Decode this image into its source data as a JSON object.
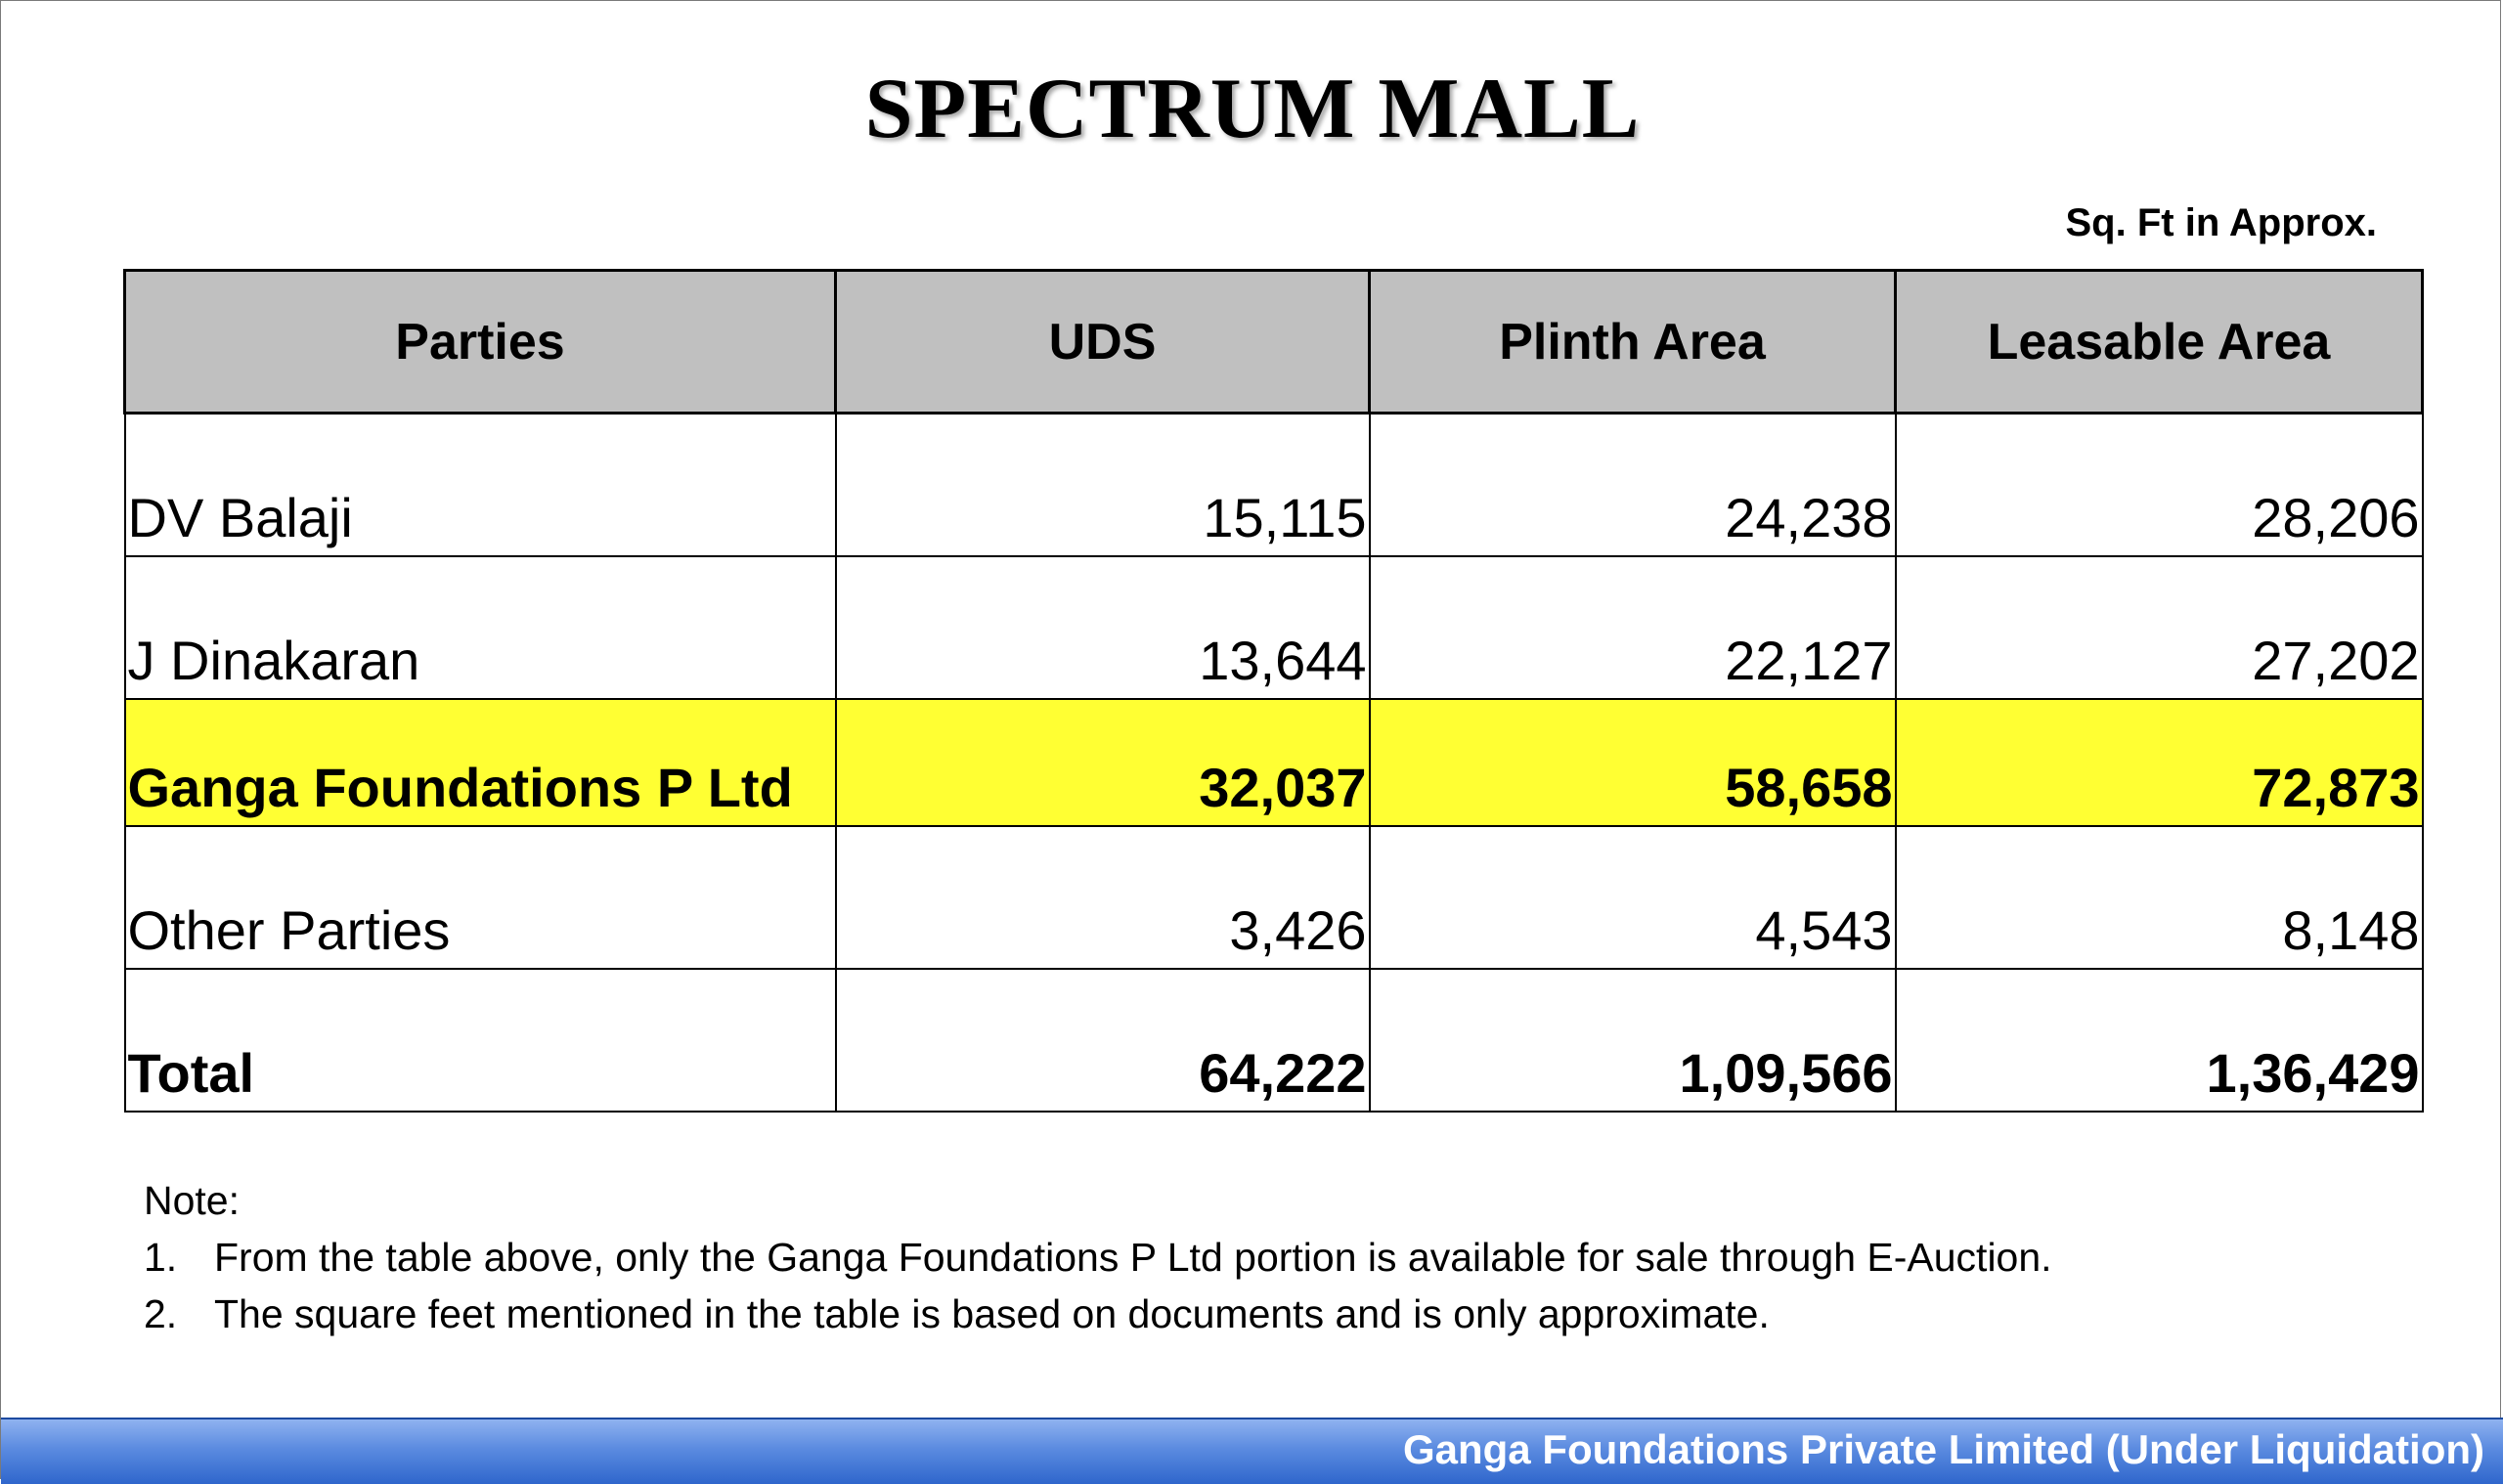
{
  "title": "SPECTRUM MALL",
  "unit_note": "Sq. Ft in Approx.",
  "table": {
    "headers": [
      "Parties",
      "UDS",
      "Plinth Area",
      "Leasable Area"
    ],
    "rows": [
      {
        "party": "DV Balaji",
        "uds": "15,115",
        "plinth": "24,238",
        "leasable": "28,206"
      },
      {
        "party": "J Dinakaran",
        "uds": "13,644",
        "plinth": "22,127",
        "leasable": "27,202"
      },
      {
        "party": "Ganga Foundations P Ltd",
        "uds": "32,037",
        "plinth": "58,658",
        "leasable": "72,873"
      },
      {
        "party": "Other Parties",
        "uds": "3,426",
        "plinth": "4,543",
        "leasable": "8,148"
      },
      {
        "party": "Total",
        "uds": "64,222",
        "plinth": "1,09,566",
        "leasable": "1,36,429"
      }
    ],
    "highlight_color": "#ffff33",
    "header_bg": "#c0c0c0"
  },
  "notes": {
    "title": "Note:",
    "items": [
      {
        "number": "1.",
        "text": "From the table above, only the Ganga Foundations P Ltd portion is available for sale through E-Auction."
      },
      {
        "number": "2.",
        "text": "The square feet mentioned in the table is based on documents and is only approximate."
      }
    ]
  },
  "footer": {
    "text": "Ganga Foundations Private Limited (Under Liquidation)",
    "bar_color": "#4a7fd9"
  }
}
